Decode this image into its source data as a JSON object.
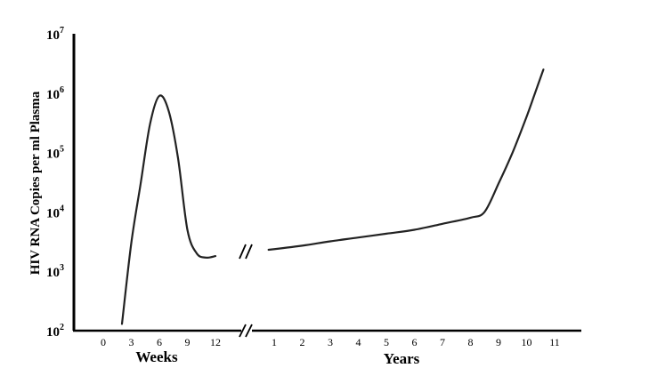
{
  "chart_data": {
    "type": "line",
    "ylabel": "HIV RNA Copies per ml Plasma",
    "yscale": "log",
    "y_ticks": [
      {
        "base": "10",
        "exp": "7",
        "value": 10000000
      },
      {
        "base": "10",
        "exp": "6",
        "value": 1000000
      },
      {
        "base": "10",
        "exp": "5",
        "value": 100000
      },
      {
        "base": "10",
        "exp": "4",
        "value": 10000
      },
      {
        "base": "10",
        "exp": "3",
        "value": 1000
      },
      {
        "base": "10",
        "exp": "2",
        "value": 100
      }
    ],
    "ylim": [
      100,
      10000000
    ],
    "segments": [
      {
        "xlabel": "Weeks",
        "ticks": [
          "0",
          "3",
          "6",
          "9",
          "12"
        ],
        "x_range": [
          0,
          12
        ],
        "points": [
          {
            "x": 2,
            "y": 130
          },
          {
            "x": 3,
            "y": 3000
          },
          {
            "x": 4,
            "y": 30000
          },
          {
            "x": 5,
            "y": 300000
          },
          {
            "x": 6,
            "y": 900000
          },
          {
            "x": 7,
            "y": 500000
          },
          {
            "x": 8,
            "y": 80000
          },
          {
            "x": 9,
            "y": 5000
          },
          {
            "x": 10,
            "y": 2000
          },
          {
            "x": 11,
            "y": 1700
          },
          {
            "x": 12,
            "y": 1800
          }
        ]
      },
      {
        "xlabel": "Years",
        "ticks": [
          "1",
          "2",
          "3",
          "4",
          "5",
          "6",
          "7",
          "8",
          "9",
          "10",
          "11"
        ],
        "x_range": [
          1,
          11
        ],
        "points": [
          {
            "x": 0.8,
            "y": 2300
          },
          {
            "x": 2,
            "y": 2700
          },
          {
            "x": 3,
            "y": 3200
          },
          {
            "x": 4,
            "y": 3700
          },
          {
            "x": 5,
            "y": 4300
          },
          {
            "x": 6,
            "y": 5000
          },
          {
            "x": 7,
            "y": 6300
          },
          {
            "x": 8,
            "y": 8000
          },
          {
            "x": 8.5,
            "y": 10000
          },
          {
            "x": 9,
            "y": 30000
          },
          {
            "x": 9.5,
            "y": 100000
          },
          {
            "x": 10,
            "y": 400000
          },
          {
            "x": 10.3,
            "y": 1000000
          },
          {
            "x": 10.6,
            "y": 2500000
          }
        ]
      }
    ],
    "axis_break": true,
    "grid": false,
    "line_color": "#222222"
  }
}
